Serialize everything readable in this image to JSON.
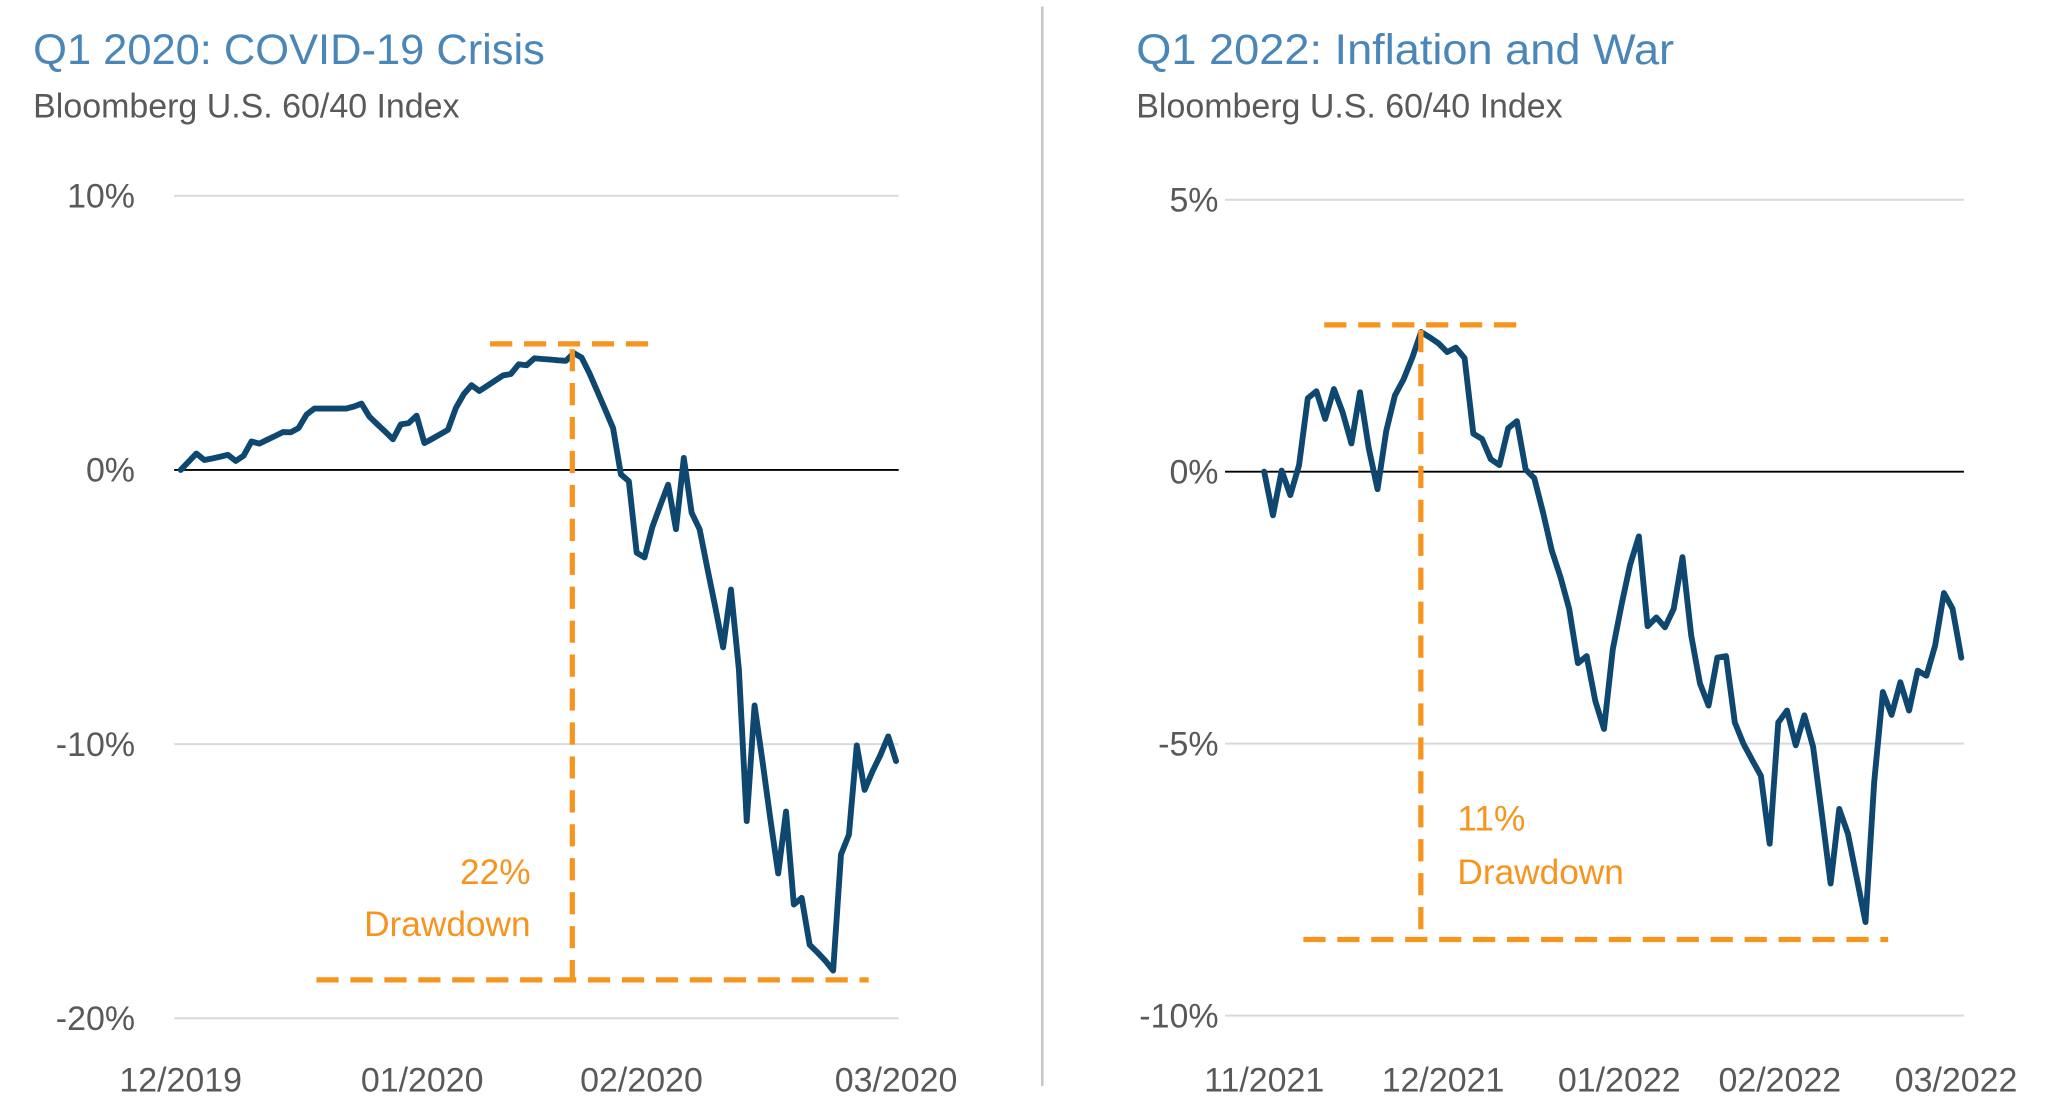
{
  "colors": {
    "title": "#4a86b8",
    "line": "#0e4770",
    "annotation": "#f7941d",
    "grid": "#d9d9d9",
    "zero_line": "#000000"
  },
  "chart_data": [
    {
      "type": "line",
      "title": "Q1 2020: COVID-19 Crisis",
      "subtitle": "Bloomberg U.S. 60/40 Index",
      "ylim": [
        -20,
        10
      ],
      "y_ticks": [
        10,
        0,
        -10,
        -20
      ],
      "y_tick_labels": [
        "10%",
        "0%",
        "-10%",
        "-20%"
      ],
      "x_tick_labels": [
        "12/2019",
        "01/2020",
        "02/2020",
        "03/2020"
      ],
      "grid": true,
      "series": [
        {
          "values": [
            0,
            0.3,
            0.6,
            0.36,
            0.42,
            0.48,
            0.55,
            0.33,
            0.52,
            1.04,
            0.96,
            1.1,
            1.24,
            1.38,
            1.37,
            1.53,
            2.02,
            2.24,
            2.24,
            2.24,
            2.24,
            2.24,
            2.31,
            2.42,
            1.95,
            1.67,
            1.4,
            1.12,
            1.66,
            1.71,
            1.98,
            0.98,
            1.14,
            1.3,
            1.46,
            2.26,
            2.76,
            3.09,
            2.88,
            3.07,
            3.26,
            3.45,
            3.5,
            3.85,
            3.82,
            4.07,
            4.05,
            4.03,
            4.0,
            3.98,
            4.26,
            4.1,
            3.53,
            2.86,
            2.2,
            1.53,
            -0.16,
            -0.41,
            -3.02,
            -3.19,
            -2.08,
            -1.3,
            -0.54,
            -2.16,
            0.44,
            -1.56,
            -2.16,
            -3.6,
            -5.0,
            -6.47,
            -4.36,
            -7.28,
            -12.81,
            -8.59,
            -10.6,
            -12.7,
            -14.72,
            -12.46,
            -15.85,
            -15.61,
            -17.32,
            -17.6,
            -17.9,
            -18.26,
            -14.03,
            -13.3,
            -10.05,
            -11.67,
            -11.0,
            -10.4,
            -9.72,
            -10.62
          ]
        }
      ],
      "annotation": {
        "peak": 4.6,
        "trough": -18.6,
        "label_line1": "22%",
        "label_line2": "Drawdown"
      }
    },
    {
      "type": "line",
      "title": "Q1 2022: Inflation and War",
      "subtitle": "Bloomberg U.S. 60/40 Index",
      "ylim": [
        -10,
        5
      ],
      "y_ticks": [
        5,
        0,
        -5,
        -10
      ],
      "y_tick_labels": [
        "5%",
        "0%",
        "-5%",
        "-10%"
      ],
      "x_tick_labels": [
        "11/2021",
        "12/2021",
        "01/2022",
        "02/2022",
        "03/2022"
      ],
      "grid": true,
      "series": [
        {
          "values": [
            0,
            -0.8,
            0.02,
            -0.43,
            0.12,
            1.35,
            1.48,
            0.97,
            1.52,
            1.09,
            0.52,
            1.46,
            0.43,
            -0.32,
            0.75,
            1.4,
            1.7,
            2.1,
            2.57,
            2.47,
            2.36,
            2.2,
            2.28,
            2.09,
            0.7,
            0.6,
            0.23,
            0.12,
            0.8,
            0.93,
            0.04,
            -0.12,
            -0.75,
            -1.45,
            -1.94,
            -2.52,
            -3.52,
            -3.39,
            -4.22,
            -4.73,
            -3.27,
            -2.45,
            -1.71,
            -1.19,
            -2.84,
            -2.68,
            -2.86,
            -2.52,
            -1.57,
            -3.01,
            -3.89,
            -4.3,
            -3.42,
            -3.39,
            -4.61,
            -5.0,
            -5.3,
            -5.59,
            -6.84,
            -4.61,
            -4.39,
            -5.03,
            -4.48,
            -5.06,
            -6.3,
            -7.57,
            -6.2,
            -6.66,
            -7.47,
            -8.28,
            -5.7,
            -4.05,
            -4.47,
            -3.87,
            -4.39,
            -3.66,
            -3.75,
            -3.19,
            -2.23,
            -2.52,
            -3.42
          ]
        }
      ],
      "annotation": {
        "peak": 2.7,
        "trough": -8.6,
        "label_line1": "11%",
        "label_line2": "Drawdown"
      }
    }
  ]
}
